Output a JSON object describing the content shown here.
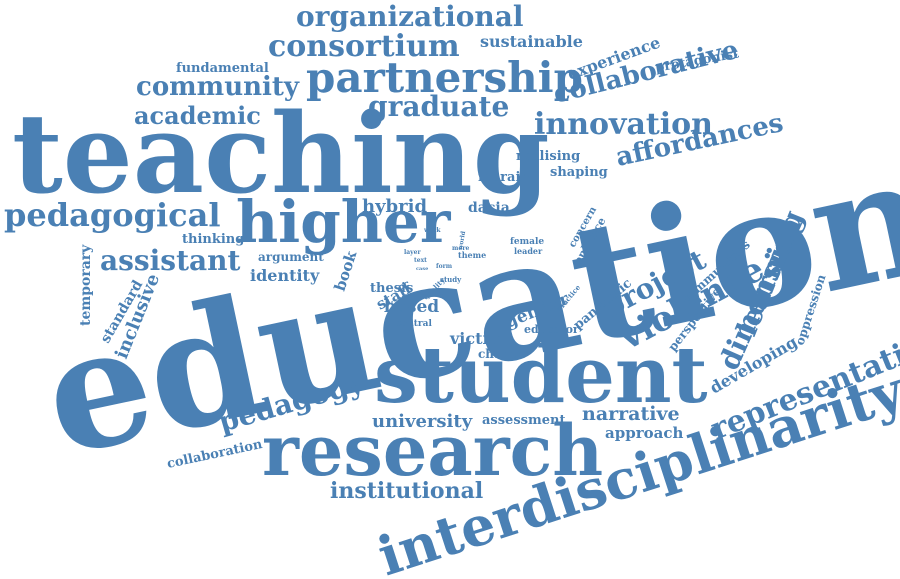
{
  "word_cloud": {
    "color": "#4a80b4",
    "words": [
      {
        "id": "education",
        "text": "education"
      },
      {
        "id": "teaching",
        "text": "teaching"
      },
      {
        "id": "student",
        "text": "student"
      },
      {
        "id": "research",
        "text": "research"
      },
      {
        "id": "interdisciplinarity",
        "text": "interdisciplinarity"
      },
      {
        "id": "higher",
        "text": "higher"
      },
      {
        "id": "partnership",
        "text": "partnership"
      },
      {
        "id": "pedagogical",
        "text": "pedagogical"
      },
      {
        "id": "innovation",
        "text": "innovation"
      },
      {
        "id": "representation",
        "text": "representation"
      },
      {
        "id": "consortium",
        "text": "consortium"
      },
      {
        "id": "organizational",
        "text": "organizational"
      },
      {
        "id": "community",
        "text": "community"
      },
      {
        "id": "graduate",
        "text": "graduate"
      },
      {
        "id": "collaborative",
        "text": "collaborative"
      },
      {
        "id": "affordances",
        "text": "affordances"
      },
      {
        "id": "academic",
        "text": "academic"
      },
      {
        "id": "assistant",
        "text": "assistant"
      },
      {
        "id": "violence",
        "text": "violence"
      },
      {
        "id": "project",
        "text": "project"
      },
      {
        "id": "learning",
        "text": "learning"
      },
      {
        "id": "dimension",
        "text": "dimension"
      },
      {
        "id": "pedagogy",
        "text": "pedagogy"
      },
      {
        "id": "institutional",
        "text": "institutional"
      },
      {
        "id": "university",
        "text": "university"
      },
      {
        "id": "narrative",
        "text": "narrative"
      },
      {
        "id": "approach",
        "text": "approach"
      },
      {
        "id": "developing",
        "text": "developing"
      },
      {
        "id": "oppression",
        "text": "oppression"
      },
      {
        "id": "experience",
        "text": "experience"
      },
      {
        "id": "sustainable",
        "text": "sustainable"
      },
      {
        "id": "fundamental",
        "text": "fundamental"
      },
      {
        "id": "protagonist",
        "text": "protagonist"
      },
      {
        "id": "realising",
        "text": "realising"
      },
      {
        "id": "shaping",
        "text": "shaping"
      },
      {
        "id": "marаini",
        "text": "maraini"
      },
      {
        "id": "hybrid",
        "text": "hybrid"
      },
      {
        "id": "dacia",
        "text": "dacia"
      },
      {
        "id": "thinking",
        "text": "thinking"
      },
      {
        "id": "argument",
        "text": "argument"
      },
      {
        "id": "identity",
        "text": "identity"
      },
      {
        "id": "temporary",
        "text": "temporary"
      },
      {
        "id": "standard",
        "text": "standard"
      },
      {
        "id": "inclusive",
        "text": "inclusive"
      },
      {
        "id": "book",
        "text": "book"
      },
      {
        "id": "thesis",
        "text": "thesis"
      },
      {
        "id": "staff",
        "text": "staff"
      },
      {
        "id": "based",
        "text": "based"
      },
      {
        "id": "central",
        "text": "central"
      },
      {
        "id": "gender",
        "text": "gender"
      },
      {
        "id": "victim",
        "text": "victim"
      },
      {
        "id": "educator",
        "text": "educator"
      },
      {
        "id": "change",
        "text": "change"
      },
      {
        "id": "assessment",
        "text": "assessment"
      },
      {
        "id": "collaboration",
        "text": "collaboration"
      },
      {
        "id": "pandemic",
        "text": "pandemic"
      },
      {
        "id": "communities",
        "text": "communities"
      },
      {
        "id": "perspective",
        "text": "perspective"
      },
      {
        "id": "concern",
        "text": "concern"
      },
      {
        "id": "enhance",
        "text": "enhance"
      },
      {
        "id": "female",
        "text": "female"
      },
      {
        "id": "leader",
        "text": "leader"
      },
      {
        "id": "theme",
        "text": "theme"
      },
      {
        "id": "more",
        "text": "more"
      },
      {
        "id": "work",
        "text": "work"
      },
      {
        "id": "layer",
        "text": "layer"
      },
      {
        "id": "text",
        "text": "text"
      },
      {
        "id": "case",
        "text": "case"
      },
      {
        "id": "study",
        "text": "study"
      },
      {
        "id": "quality",
        "text": "quality"
      },
      {
        "id": "practice",
        "text": "practice"
      },
      {
        "id": "world",
        "text": "world"
      },
      {
        "id": "form",
        "text": "form"
      }
    ]
  }
}
